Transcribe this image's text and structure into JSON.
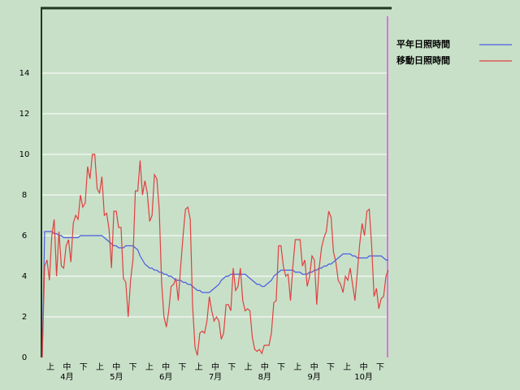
{
  "chart_data": {
    "type": "line",
    "series": [
      {
        "name": "平年日照時間",
        "color": "#4a5ee0",
        "values": [
          0,
          6.2,
          6.2,
          6.2,
          6.2,
          6.1,
          6.1,
          6.0,
          6.0,
          5.9,
          5.9,
          5.9,
          5.9,
          5.9,
          5.9,
          5.9,
          6.0,
          6.0,
          6.0,
          6.0,
          6.0,
          6.0,
          6.0,
          6.0,
          6.0,
          6.0,
          5.9,
          5.8,
          5.7,
          5.6,
          5.5,
          5.5,
          5.4,
          5.4,
          5.4,
          5.5,
          5.5,
          5.5,
          5.5,
          5.4,
          5.3,
          5.0,
          4.8,
          4.6,
          4.5,
          4.4,
          4.4,
          4.3,
          4.3,
          4.2,
          4.2,
          4.1,
          4.1,
          4.0,
          4.0,
          3.9,
          3.8,
          3.8,
          3.8,
          3.7,
          3.7,
          3.6,
          3.6,
          3.5,
          3.4,
          3.3,
          3.3,
          3.2,
          3.2,
          3.2,
          3.2,
          3.3,
          3.4,
          3.5,
          3.6,
          3.8,
          3.9,
          4.0,
          4.0,
          4.1,
          4.1,
          4.1,
          4.1,
          4.1,
          4.1,
          4.1,
          4.0,
          3.9,
          3.8,
          3.7,
          3.6,
          3.6,
          3.5,
          3.5,
          3.6,
          3.7,
          3.8,
          4.0,
          4.1,
          4.2,
          4.3,
          4.3,
          4.3,
          4.3,
          4.3,
          4.3,
          4.2,
          4.2,
          4.2,
          4.1,
          4.1,
          4.1,
          4.2,
          4.2,
          4.3,
          4.3,
          4.4,
          4.4,
          4.5,
          4.5,
          4.6,
          4.6,
          4.7,
          4.8,
          4.9,
          5.0,
          5.1,
          5.1,
          5.1,
          5.1,
          5.0,
          5.0,
          4.9,
          4.9,
          4.9,
          4.9,
          4.9,
          5.0,
          5.0,
          5.0,
          5.0,
          5.0,
          5.0,
          4.9,
          4.8,
          4.8
        ]
      },
      {
        "name": "移動日照時間",
        "color": "#e04040",
        "values": [
          0,
          4.5,
          4.8,
          3.8,
          6.0,
          6.8,
          4.0,
          6.2,
          4.5,
          4.4,
          5.5,
          5.8,
          4.7,
          6.6,
          7.0,
          6.8,
          8.0,
          7.4,
          7.6,
          9.4,
          8.8,
          10.0,
          10.0,
          8.3,
          8.1,
          8.9,
          7.0,
          7.1,
          6.3,
          4.4,
          7.2,
          7.2,
          6.4,
          6.4,
          3.9,
          3.7,
          2.0,
          3.8,
          4.8,
          8.2,
          8.2,
          9.7,
          8.0,
          8.7,
          8.1,
          6.7,
          7.0,
          9.0,
          8.8,
          7.3,
          3.7,
          2.0,
          1.5,
          2.3,
          3.5,
          3.6,
          3.9,
          2.8,
          4.5,
          6.0,
          7.3,
          7.4,
          6.8,
          2.5,
          0.5,
          0.1,
          1.2,
          1.3,
          1.2,
          1.8,
          3.0,
          2.3,
          1.8,
          2.0,
          1.8,
          0.9,
          1.2,
          2.6,
          2.6,
          2.3,
          4.4,
          3.3,
          3.5,
          4.4,
          2.8,
          2.3,
          2.4,
          2.3,
          1.0,
          0.4,
          0.3,
          0.4,
          0.2,
          0.6,
          0.6,
          0.6,
          1.2,
          2.7,
          2.8,
          5.5,
          5.5,
          4.5,
          4.0,
          4.1,
          2.8,
          4.5,
          5.8,
          5.8,
          5.8,
          4.5,
          4.8,
          3.5,
          4.0,
          5.0,
          4.8,
          2.6,
          4.4,
          5.4,
          5.9,
          6.2,
          7.2,
          6.9,
          5.2,
          4.7,
          3.8,
          3.6,
          3.2,
          4.0,
          3.8,
          4.4,
          3.6,
          2.8,
          4.2,
          5.6,
          6.6,
          6.0,
          7.2,
          7.3,
          5.5,
          3.0,
          3.4,
          2.4,
          2.9,
          3.0,
          4.0,
          4.3
        ]
      }
    ],
    "x_tick_labels": [
      "上",
      "中",
      "下",
      "上",
      "中",
      "下",
      "上",
      "中",
      "下",
      "上",
      "中",
      "下",
      "上",
      "中",
      "下",
      "上",
      "中",
      "下",
      "上",
      "中",
      "下"
    ],
    "month_labels": [
      "4月",
      "5月",
      "6月",
      "7月",
      "8月",
      "9月",
      "10月"
    ],
    "ylim": [
      0,
      17.2
    ],
    "yticks": [
      0,
      2,
      4,
      6,
      8,
      10,
      12,
      14
    ],
    "grid": true
  }
}
